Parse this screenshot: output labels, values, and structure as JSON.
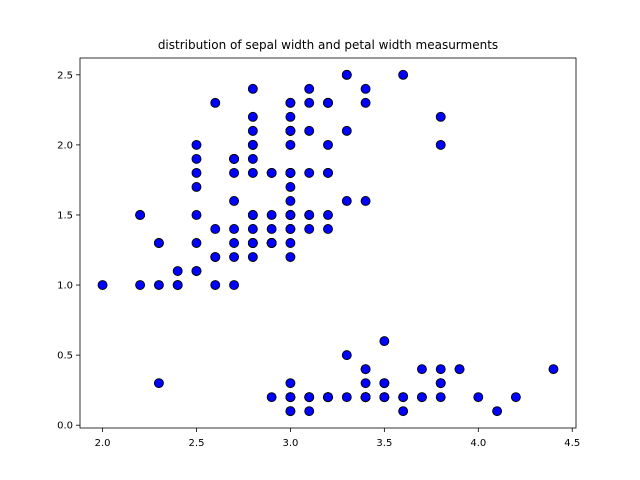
{
  "chart_data": {
    "type": "scatter",
    "title": "distribution of sepal width and petal width measurments",
    "xlabel": "",
    "ylabel": "",
    "xlim": [
      1.88,
      4.52
    ],
    "ylim": [
      -0.02,
      2.62
    ],
    "xticks": [
      2.0,
      2.5,
      3.0,
      3.5,
      4.0,
      4.5
    ],
    "xtick_labels": [
      "2.0",
      "2.5",
      "3.0",
      "3.5",
      "4.0",
      "4.5"
    ],
    "yticks": [
      0.0,
      0.5,
      1.0,
      1.5,
      2.0,
      2.5
    ],
    "ytick_labels": [
      "0.0",
      "0.5",
      "1.0",
      "1.5",
      "2.0",
      "2.5"
    ],
    "grid": false,
    "marker": {
      "fill": "#0000ff",
      "edge": "#000000"
    },
    "series": [
      {
        "x": [
          3.5,
          3.0,
          3.2,
          3.1,
          3.6,
          3.9,
          3.4,
          3.4,
          2.9,
          3.1,
          3.7,
          3.4,
          3.0,
          3.0,
          4.0,
          4.4,
          3.9,
          3.5,
          3.8,
          3.8,
          3.4,
          3.7,
          3.6,
          3.3,
          3.4,
          3.0,
          3.4,
          3.5,
          3.4,
          3.2,
          3.1,
          3.4,
          4.1,
          4.2,
          3.1,
          3.2,
          3.5,
          3.6,
          3.0,
          3.4,
          3.5,
          2.3,
          3.2,
          3.5,
          3.8,
          3.0,
          3.8,
          3.2,
          3.7,
          3.3,
          3.2,
          3.2,
          3.1,
          2.3,
          2.8,
          2.8,
          3.3,
          2.4,
          2.9,
          2.7,
          2.0,
          3.0,
          2.2,
          2.9,
          2.9,
          3.1,
          3.0,
          2.7,
          2.2,
          2.5,
          3.2,
          2.8,
          2.5,
          2.8,
          2.9,
          3.0,
          2.8,
          3.0,
          2.9,
          2.6,
          2.4,
          2.4,
          2.7,
          2.7,
          3.0,
          3.4,
          3.1,
          2.3,
          3.0,
          2.5,
          2.6,
          3.0,
          2.6,
          2.3,
          2.7,
          3.0,
          2.9,
          2.9,
          2.5,
          2.8,
          3.3,
          2.7,
          3.0,
          2.9,
          3.0,
          3.0,
          2.5,
          2.9,
          2.5,
          3.6,
          3.2,
          2.7,
          3.0,
          2.5,
          2.8,
          3.2,
          3.0,
          3.8,
          2.6,
          2.2,
          3.2,
          2.8,
          2.8,
          2.7,
          3.3,
          3.2,
          2.8,
          3.0,
          2.8,
          3.0,
          2.8,
          3.8,
          2.8,
          2.8,
          2.6,
          3.0,
          3.4,
          3.1,
          3.0,
          3.1,
          3.1,
          3.1,
          2.7,
          3.2,
          3.3,
          3.0,
          2.5,
          3.0,
          3.4,
          3.0
        ],
        "y": [
          0.2,
          0.2,
          0.2,
          0.2,
          0.2,
          0.4,
          0.3,
          0.2,
          0.2,
          0.1,
          0.2,
          0.2,
          0.1,
          0.1,
          0.2,
          0.4,
          0.4,
          0.3,
          0.3,
          0.3,
          0.2,
          0.4,
          0.2,
          0.5,
          0.2,
          0.2,
          0.4,
          0.2,
          0.2,
          0.2,
          0.2,
          0.4,
          0.1,
          0.2,
          0.2,
          0.2,
          0.2,
          0.1,
          0.2,
          0.2,
          0.3,
          0.3,
          0.2,
          0.6,
          0.4,
          0.3,
          0.2,
          0.2,
          0.2,
          0.2,
          1.4,
          1.5,
          1.5,
          1.3,
          1.5,
          1.3,
          1.6,
          1.0,
          1.3,
          1.4,
          1.0,
          1.5,
          1.0,
          1.4,
          1.3,
          1.4,
          1.5,
          1.0,
          1.5,
          1.1,
          1.8,
          1.3,
          1.5,
          1.2,
          1.3,
          1.4,
          1.4,
          1.7,
          1.5,
          1.0,
          1.1,
          1.0,
          1.2,
          1.6,
          1.5,
          1.6,
          1.5,
          1.3,
          1.3,
          1.3,
          1.2,
          1.4,
          1.2,
          1.0,
          1.3,
          1.2,
          1.3,
          1.3,
          1.1,
          1.3,
          2.5,
          1.9,
          2.1,
          1.8,
          2.2,
          2.1,
          1.7,
          1.8,
          1.8,
          2.5,
          2.0,
          1.9,
          2.1,
          2.0,
          2.4,
          2.3,
          1.8,
          2.2,
          2.3,
          1.5,
          2.3,
          2.0,
          2.0,
          1.8,
          2.1,
          1.8,
          1.8,
          1.8,
          2.1,
          1.6,
          1.9,
          2.0,
          2.2,
          1.5,
          1.4,
          2.3,
          2.4,
          1.8,
          1.8,
          2.1,
          2.4,
          2.3,
          1.9,
          2.3,
          2.5,
          2.3,
          1.9,
          2.0,
          2.3,
          1.8
        ]
      }
    ]
  }
}
